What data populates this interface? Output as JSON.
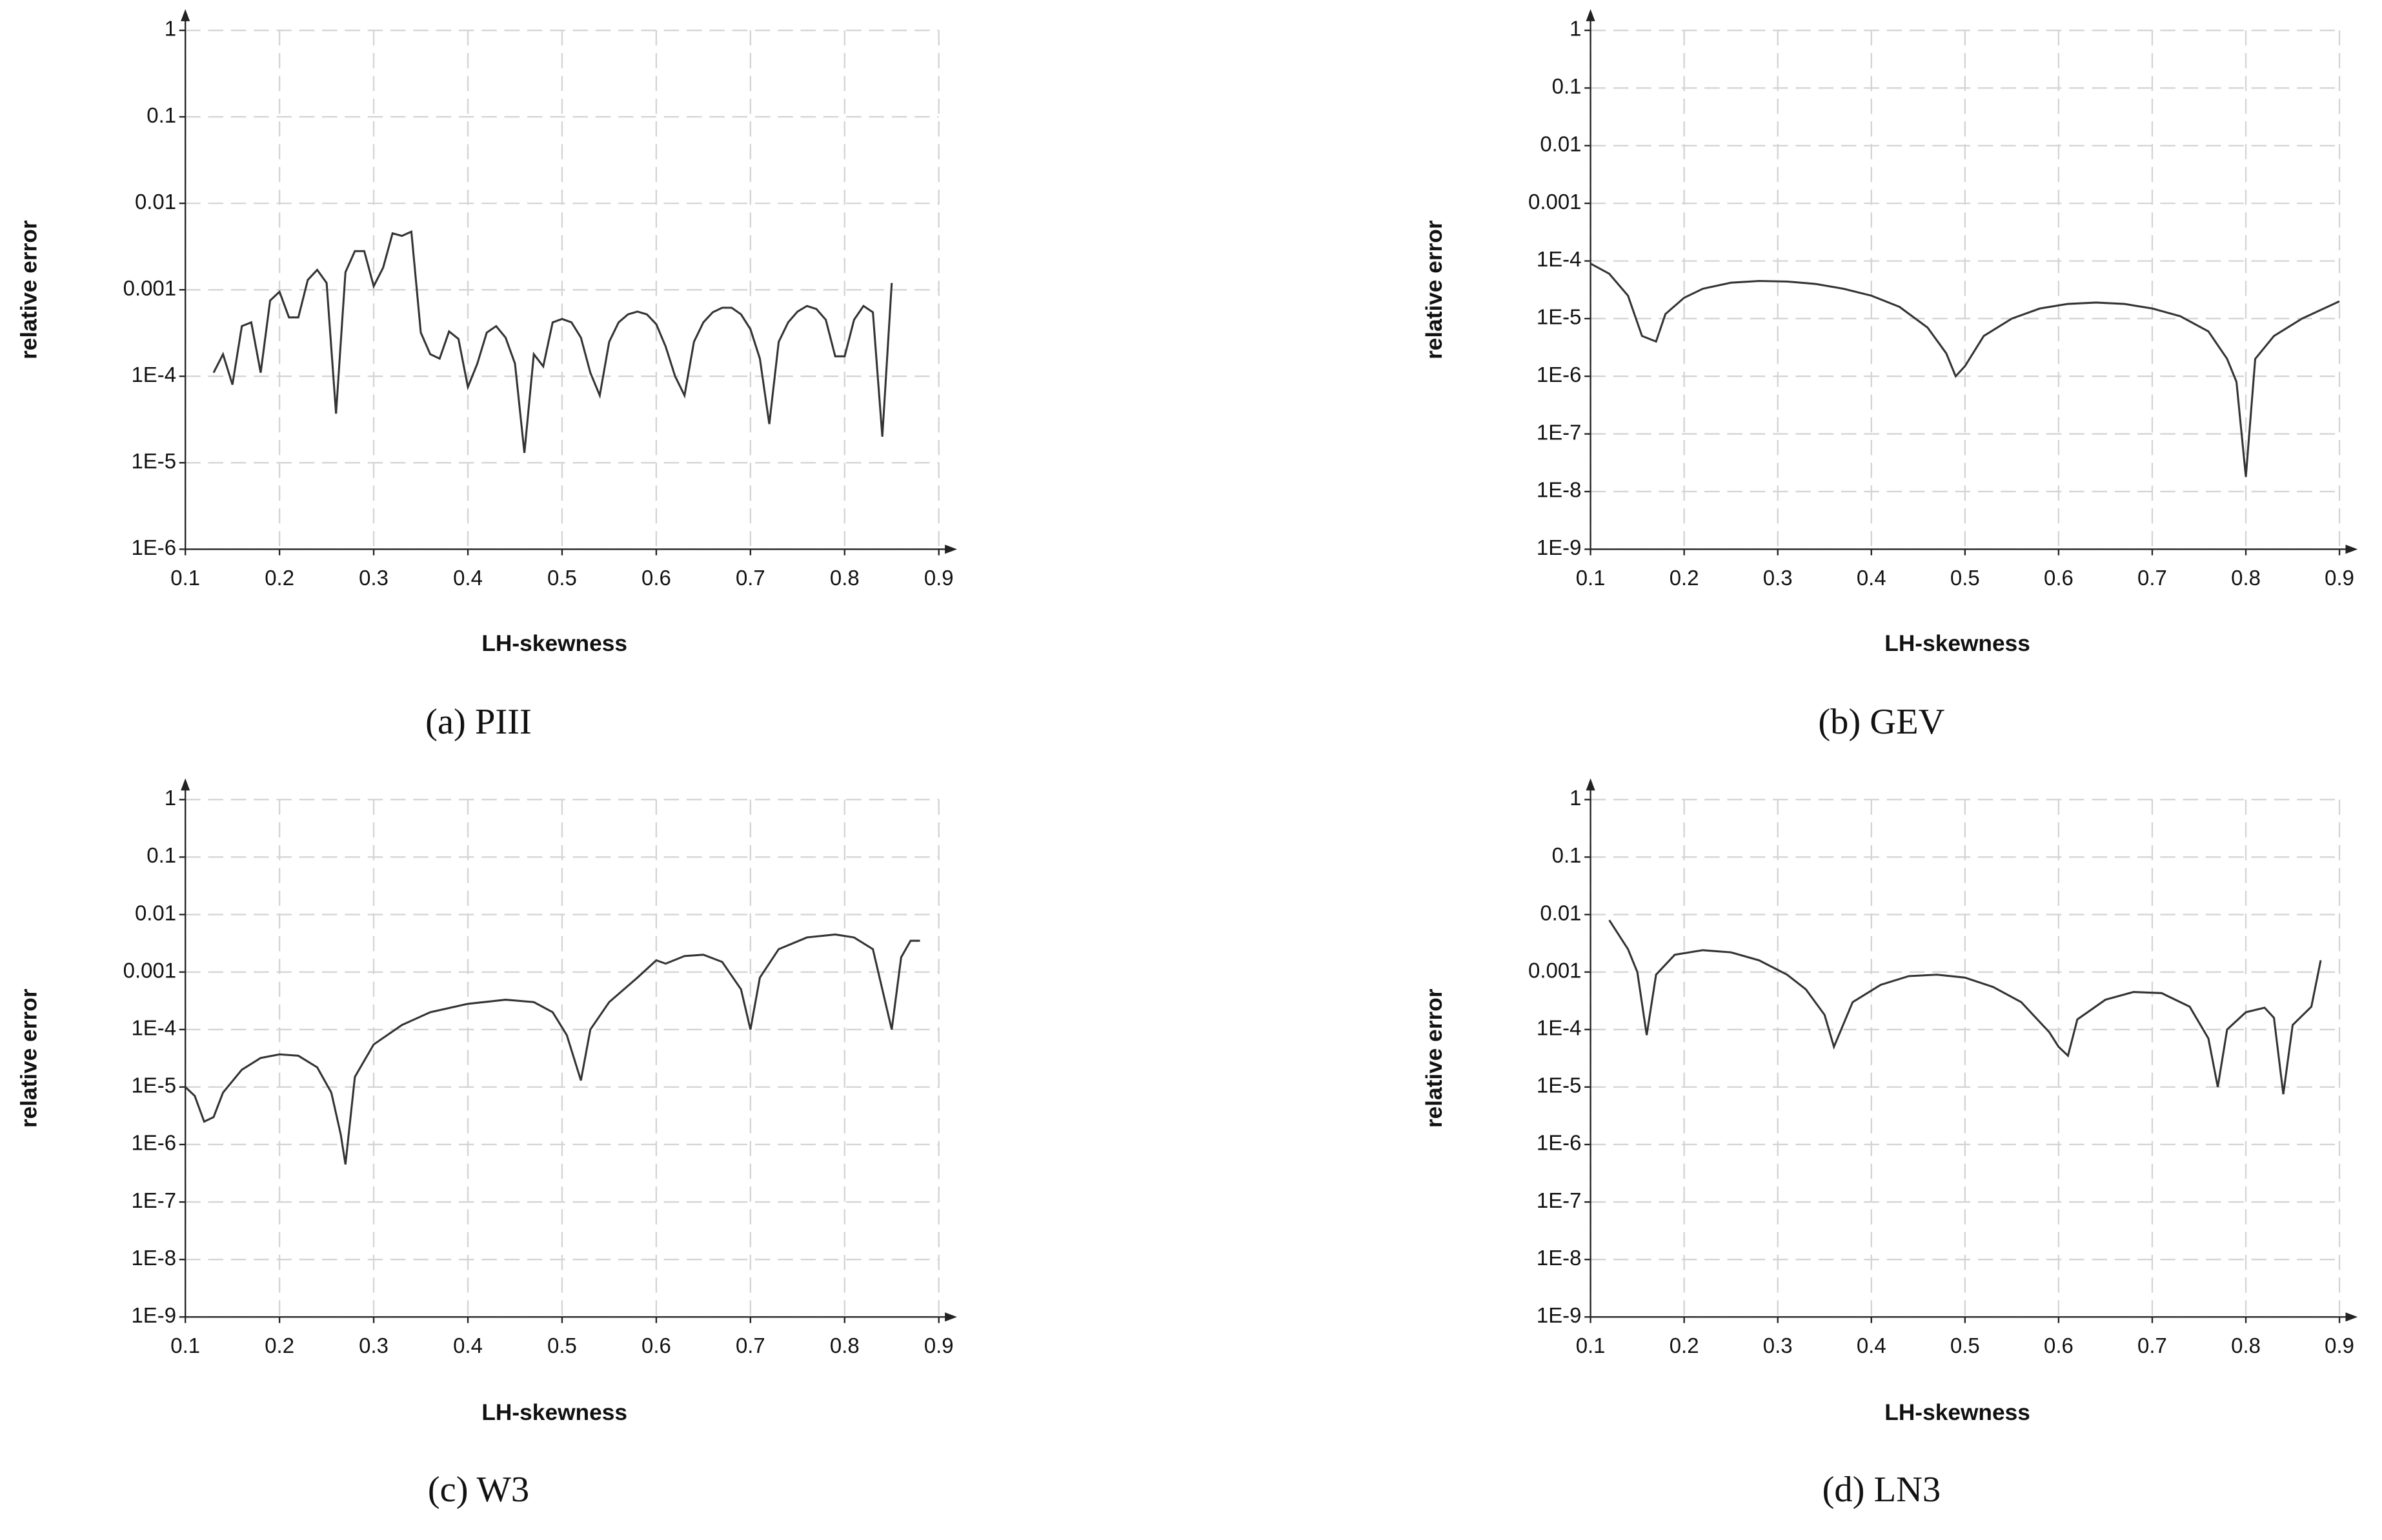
{
  "chart_data": [
    {
      "type": "line",
      "caption": "(a) PIII",
      "xlabel": "LH-skewness",
      "ylabel": "relative error",
      "log_y": true,
      "grid": true,
      "color": "#333333",
      "xlim": [
        0.1,
        0.9
      ],
      "xticks": [
        0.1,
        0.2,
        0.3,
        0.4,
        0.5,
        0.6,
        0.7,
        0.8,
        0.9
      ],
      "ylim": [
        1e-06,
        1
      ],
      "yticks": [
        {
          "value": 1e-06,
          "label": "1E-6"
        },
        {
          "value": 1e-05,
          "label": "1E-5"
        },
        {
          "value": 0.0001,
          "label": "1E-4"
        },
        0.001,
        0.01,
        0.1,
        1
      ],
      "x": [
        0.13,
        0.14,
        0.15,
        0.16,
        0.17,
        0.18,
        0.19,
        0.2,
        0.21,
        0.22,
        0.23,
        0.24,
        0.25,
        0.26,
        0.27,
        0.28,
        0.29,
        0.3,
        0.31,
        0.32,
        0.33,
        0.34,
        0.35,
        0.36,
        0.37,
        0.38,
        0.39,
        0.4,
        0.41,
        0.42,
        0.43,
        0.44,
        0.45,
        0.46,
        0.47,
        0.48,
        0.49,
        0.5,
        0.51,
        0.52,
        0.53,
        0.54,
        0.55,
        0.56,
        0.57,
        0.58,
        0.59,
        0.6,
        0.61,
        0.62,
        0.63,
        0.64,
        0.65,
        0.66,
        0.67,
        0.68,
        0.69,
        0.7,
        0.71,
        0.72,
        0.73,
        0.74,
        0.75,
        0.76,
        0.77,
        0.78,
        0.79,
        0.8,
        0.81,
        0.82,
        0.83,
        0.84,
        0.85
      ],
      "values": [
        0.00011,
        0.00018,
        8e-05,
        0.00038,
        0.00042,
        0.00011,
        0.00075,
        0.00095,
        0.00048,
        0.00048,
        0.0013,
        0.0017,
        0.0012,
        3.7e-05,
        0.0016,
        0.0028,
        0.0028,
        0.0011,
        0.0018,
        0.0045,
        0.0042,
        0.0047,
        0.00032,
        0.00018,
        0.00016,
        0.00033,
        0.00027,
        7.5e-05,
        0.00014,
        0.00032,
        0.00038,
        0.00028,
        0.00014,
        1.3e-05,
        0.00018,
        0.00013,
        0.00042,
        0.00046,
        0.00042,
        0.00028,
        0.00011,
        6e-05,
        0.00025,
        0.00042,
        0.00052,
        0.00056,
        0.00052,
        0.0004,
        0.00022,
        0.0001,
        6e-05,
        0.00025,
        0.00042,
        0.00055,
        0.00062,
        0.00062,
        0.00052,
        0.00035,
        0.00016,
        2.8e-05,
        0.00025,
        0.00042,
        0.00056,
        0.00065,
        0.0006,
        0.00045,
        0.00017,
        0.00017,
        0.00045,
        0.00065,
        0.00055,
        2e-05,
        0.0012
      ]
    },
    {
      "type": "line",
      "caption": "(b) GEV",
      "xlabel": "LH-skewness",
      "ylabel": "relative error",
      "log_y": true,
      "grid": true,
      "color": "#333333",
      "xlim": [
        0.1,
        0.9
      ],
      "xticks": [
        0.1,
        0.2,
        0.3,
        0.4,
        0.5,
        0.6,
        0.7,
        0.8,
        0.9
      ],
      "ylim": [
        1e-09,
        1
      ],
      "yticks": [
        {
          "value": 1e-09,
          "label": "1E-9"
        },
        {
          "value": 1e-08,
          "label": "1E-8"
        },
        {
          "value": 1e-07,
          "label": "1E-7"
        },
        {
          "value": 1e-06,
          "label": "1E-6"
        },
        {
          "value": 1e-05,
          "label": "1E-5"
        },
        {
          "value": 0.0001,
          "label": "1E-4"
        },
        0.001,
        0.01,
        0.1,
        1
      ],
      "x": [
        0.1,
        0.12,
        0.14,
        0.155,
        0.17,
        0.18,
        0.2,
        0.22,
        0.25,
        0.28,
        0.31,
        0.34,
        0.37,
        0.4,
        0.43,
        0.46,
        0.48,
        0.49,
        0.5,
        0.52,
        0.55,
        0.58,
        0.61,
        0.64,
        0.67,
        0.7,
        0.73,
        0.76,
        0.78,
        0.79,
        0.8,
        0.81,
        0.83,
        0.86,
        0.9
      ],
      "values": [
        9e-05,
        6e-05,
        2.5e-05,
        5e-06,
        4e-06,
        1.2e-05,
        2.3e-05,
        3.3e-05,
        4.2e-05,
        4.5e-05,
        4.4e-05,
        4e-05,
        3.3e-05,
        2.5e-05,
        1.6e-05,
        7e-06,
        2.5e-06,
        1e-06,
        1.5e-06,
        5e-06,
        1e-05,
        1.5e-05,
        1.8e-05,
        1.9e-05,
        1.8e-05,
        1.5e-05,
        1.1e-05,
        6e-06,
        2e-06,
        8e-07,
        1.8e-08,
        2e-06,
        5e-06,
        1e-05,
        2e-05
      ]
    },
    {
      "type": "line",
      "caption": "(c) W3",
      "xlabel": "LH-skewness",
      "ylabel": "relative error",
      "log_y": true,
      "grid": true,
      "color": "#333333",
      "xlim": [
        0.1,
        0.9
      ],
      "xticks": [
        0.1,
        0.2,
        0.3,
        0.4,
        0.5,
        0.6,
        0.7,
        0.8,
        0.9
      ],
      "ylim": [
        1e-09,
        1
      ],
      "yticks": [
        {
          "value": 1e-09,
          "label": "1E-9"
        },
        {
          "value": 1e-08,
          "label": "1E-8"
        },
        {
          "value": 1e-07,
          "label": "1E-7"
        },
        {
          "value": 1e-06,
          "label": "1E-6"
        },
        {
          "value": 1e-05,
          "label": "1E-5"
        },
        {
          "value": 0.0001,
          "label": "1E-4"
        },
        0.001,
        0.01,
        0.1,
        1
      ],
      "x": [
        0.1,
        0.11,
        0.12,
        0.13,
        0.14,
        0.16,
        0.18,
        0.2,
        0.22,
        0.24,
        0.255,
        0.265,
        0.27,
        0.28,
        0.3,
        0.33,
        0.36,
        0.4,
        0.44,
        0.47,
        0.49,
        0.505,
        0.52,
        0.53,
        0.55,
        0.58,
        0.6,
        0.61,
        0.63,
        0.65,
        0.67,
        0.69,
        0.7,
        0.71,
        0.73,
        0.76,
        0.79,
        0.81,
        0.83,
        0.84,
        0.85,
        0.86,
        0.87,
        0.88
      ],
      "values": [
        1e-05,
        7e-06,
        2.5e-06,
        3e-06,
        8e-06,
        2e-05,
        3.2e-05,
        3.7e-05,
        3.5e-05,
        2.2e-05,
        8e-06,
        1.5e-06,
        4.5e-07,
        1.5e-05,
        5.5e-05,
        0.00012,
        0.0002,
        0.00028,
        0.00033,
        0.0003,
        0.0002,
        8e-05,
        1.3e-05,
        0.0001,
        0.0003,
        0.0008,
        0.0016,
        0.0014,
        0.0019,
        0.002,
        0.0015,
        0.0005,
        0.0001,
        0.0008,
        0.0025,
        0.004,
        0.0045,
        0.004,
        0.0025,
        0.0005,
        0.0001,
        0.0018,
        0.0035,
        0.0035
      ]
    },
    {
      "type": "line",
      "caption": "(d) LN3",
      "xlabel": "LH-skewness",
      "ylabel": "relative error",
      "log_y": true,
      "grid": true,
      "color": "#333333",
      "xlim": [
        0.1,
        0.9
      ],
      "xticks": [
        0.1,
        0.2,
        0.3,
        0.4,
        0.5,
        0.6,
        0.7,
        0.8,
        0.9
      ],
      "ylim": [
        1e-09,
        1
      ],
      "yticks": [
        {
          "value": 1e-09,
          "label": "1E-9"
        },
        {
          "value": 1e-08,
          "label": "1E-8"
        },
        {
          "value": 1e-07,
          "label": "1E-7"
        },
        {
          "value": 1e-06,
          "label": "1E-6"
        },
        {
          "value": 1e-05,
          "label": "1E-5"
        },
        {
          "value": 0.0001,
          "label": "1E-4"
        },
        0.001,
        0.01,
        0.1,
        1
      ],
      "x": [
        0.12,
        0.14,
        0.15,
        0.16,
        0.17,
        0.19,
        0.22,
        0.25,
        0.28,
        0.31,
        0.33,
        0.35,
        0.36,
        0.38,
        0.41,
        0.44,
        0.47,
        0.5,
        0.53,
        0.56,
        0.59,
        0.6,
        0.61,
        0.62,
        0.65,
        0.68,
        0.71,
        0.74,
        0.76,
        0.77,
        0.78,
        0.8,
        0.82,
        0.83,
        0.84,
        0.85,
        0.87,
        0.88
      ],
      "values": [
        0.008,
        0.0025,
        0.001,
        8e-05,
        0.0009,
        0.002,
        0.0024,
        0.0022,
        0.0016,
        0.0009,
        0.0005,
        0.00018,
        5e-05,
        0.0003,
        0.0006,
        0.00085,
        0.0009,
        0.0008,
        0.00055,
        0.0003,
        9e-05,
        5e-05,
        3.5e-05,
        0.00015,
        0.00033,
        0.00045,
        0.00043,
        0.00025,
        7e-05,
        1e-05,
        0.0001,
        0.0002,
        0.00024,
        0.00016,
        7.5e-06,
        0.00012,
        0.00025,
        0.0016
      ]
    }
  ]
}
